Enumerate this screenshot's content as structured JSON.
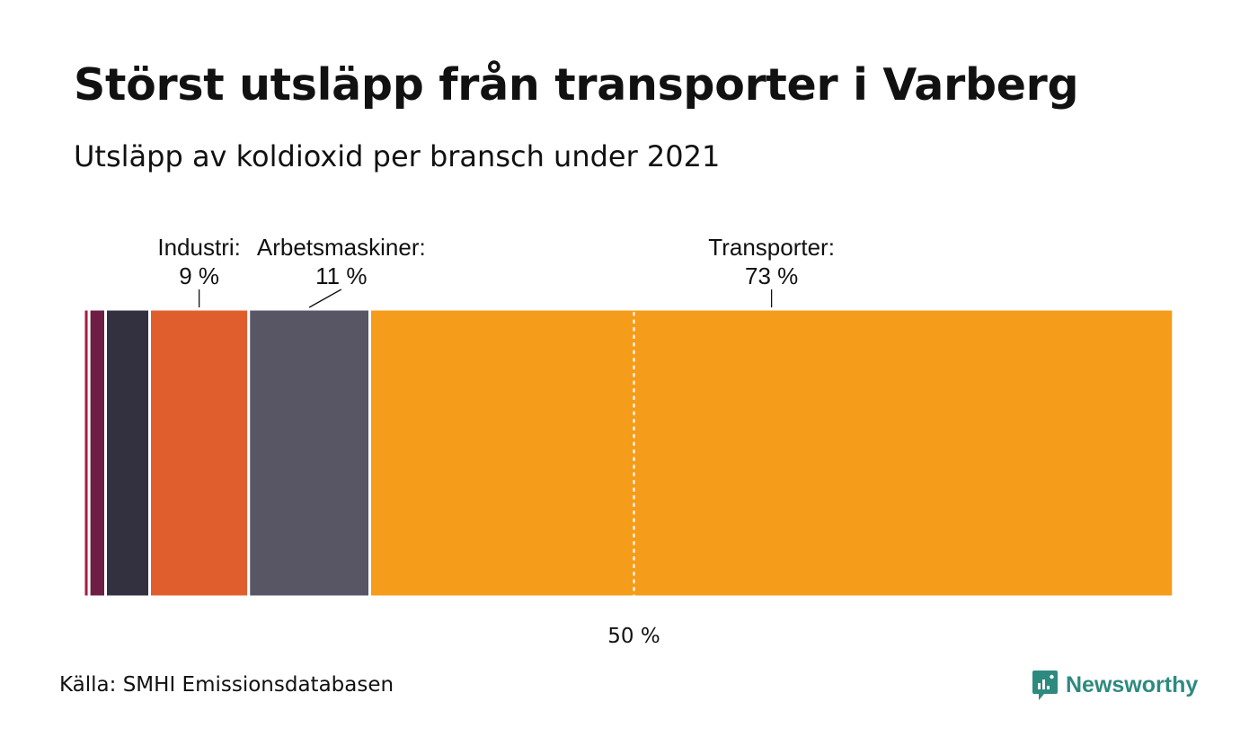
{
  "title": "Störst utsläpp från transporter i Varberg",
  "subtitle": "Utsläpp av koldioxid per bransch under 2021",
  "source": "Källa: SMHI Emissionsdatabasen",
  "brand": {
    "name": "Newsworthy",
    "color": "#2e8a7f"
  },
  "chart_data": {
    "type": "bar",
    "orientation": "stacked-horizontal-100",
    "segments": [
      {
        "label": "",
        "value": 0.5,
        "color": "#a61e3a"
      },
      {
        "label": "",
        "value": 1.5,
        "color": "#6e1d45"
      },
      {
        "label": "",
        "value": 4,
        "color": "#33313f"
      },
      {
        "label": "Industri:",
        "value_label": "9 %",
        "value": 9,
        "color": "#e05e2e"
      },
      {
        "label": "Arbetsmaskiner:",
        "value_label": "11 %",
        "value": 11,
        "color": "#585665"
      },
      {
        "label": "Transporter:",
        "value_label": "73 %",
        "value": 73,
        "color": "#f59c1a"
      }
    ],
    "reference_line": {
      "value": 50,
      "label": "50 %"
    },
    "xlim": [
      0,
      100
    ],
    "grid": false,
    "legend": "none"
  }
}
